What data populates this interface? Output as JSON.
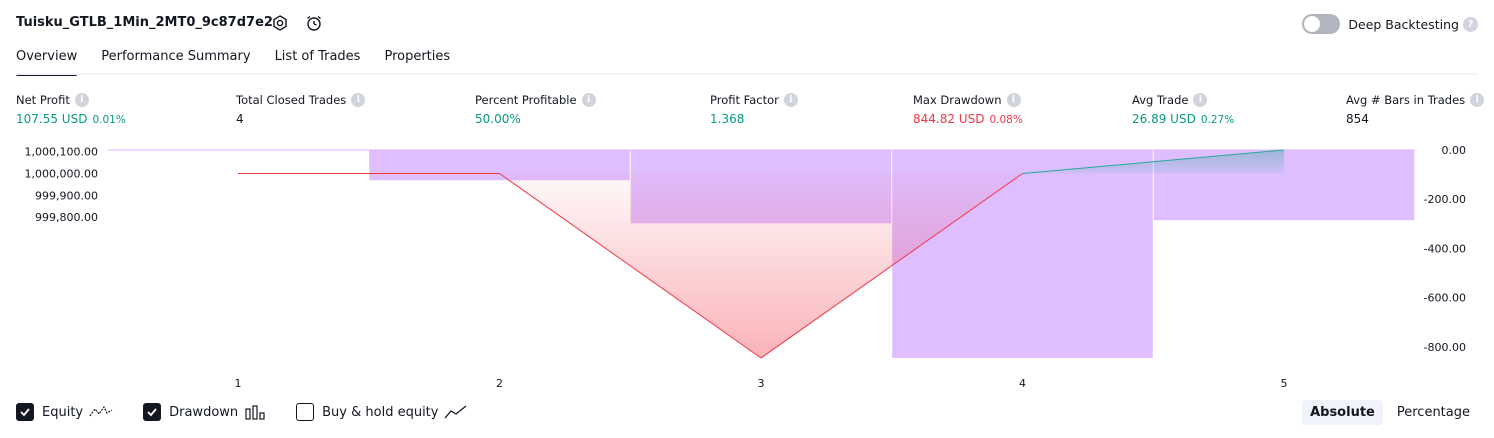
{
  "header": {
    "title": "Tuisku_GTLB_1Min_2MT0_9c87d7e2",
    "deep_backtesting_label": "Deep Backtesting",
    "help_glyph": "?"
  },
  "tabs": [
    {
      "label": "Overview",
      "active": true
    },
    {
      "label": "Performance Summary",
      "active": false
    },
    {
      "label": "List of Trades",
      "active": false
    },
    {
      "label": "Properties",
      "active": false
    }
  ],
  "stats": [
    {
      "label": "Net Profit",
      "value": "107.55 USD",
      "pct": "0.01%",
      "color": "#089981"
    },
    {
      "label": "Total Closed Trades",
      "value": "4",
      "pct": "",
      "color": "#131722"
    },
    {
      "label": "Percent Profitable",
      "value": "50.00%",
      "pct": "",
      "color": "#089981"
    },
    {
      "label": "Profit Factor",
      "value": "1.368",
      "pct": "",
      "color": "#089981"
    },
    {
      "label": "Max Drawdown",
      "value": "844.82 USD",
      "pct": "0.08%",
      "color": "#f23645"
    },
    {
      "label": "Avg Trade",
      "value": "26.89 USD",
      "pct": "0.27%",
      "color": "#089981"
    },
    {
      "label": "Avg # Bars in Trades",
      "value": "854",
      "pct": "",
      "color": "#131722"
    }
  ],
  "info_glyph": "i",
  "chart_data": {
    "type": "line",
    "x": [
      1,
      2,
      3,
      4,
      5
    ],
    "x_tick_labels": [
      "1",
      "2",
      "3",
      "4",
      "5"
    ],
    "equity": {
      "values": [
        1000000.0,
        1000000.0,
        999155.18,
        1000000.0,
        1000107.55
      ],
      "colors": {
        "loss": "#f23645",
        "gain": "#22ab94"
      }
    },
    "drawdown": {
      "bars": [
        {
          "from": 1.5,
          "to": 2.5,
          "value": -123
        },
        {
          "from": 2.5,
          "to": 3.5,
          "value": -298
        },
        {
          "from": 3.5,
          "to": 4.5,
          "value": -844.82
        },
        {
          "from": 4.5,
          "to": 5.5,
          "value": -285
        }
      ],
      "color": "#d9b3ff"
    },
    "left_axis": {
      "ticks": [
        1000100,
        1000000,
        999900,
        999800
      ],
      "tick_labels": [
        "1,000,100.00",
        "1,000,000.00",
        "999,900.00",
        "999,800.00"
      ],
      "range": [
        999155.18,
        1000107.55
      ]
    },
    "right_axis": {
      "ticks": [
        0,
        -200,
        -400,
        -600,
        -800
      ],
      "tick_labels": [
        "0.00",
        "-200.00",
        "-400.00",
        "-600.00",
        "-800.00"
      ],
      "range": [
        -844.82,
        0
      ]
    },
    "grid": false
  },
  "legend": [
    {
      "label": "Equity",
      "checked": true,
      "glyph": "equity-line-icon"
    },
    {
      "label": "Drawdown",
      "checked": true,
      "glyph": "drawdown-bars-icon"
    },
    {
      "label": "Buy & hold equity",
      "checked": false,
      "glyph": "buy-hold-line-icon"
    }
  ],
  "mode": {
    "options": [
      "Absolute",
      "Percentage"
    ],
    "selected": "Absolute"
  }
}
